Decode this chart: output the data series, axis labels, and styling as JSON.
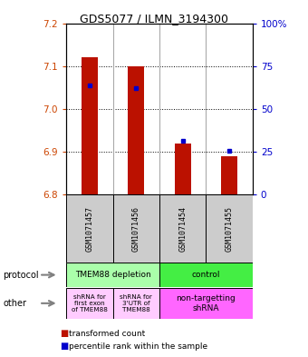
{
  "title": "GDS5077 / ILMN_3194300",
  "samples": [
    "GSM1071457",
    "GSM1071456",
    "GSM1071454",
    "GSM1071455"
  ],
  "bar_values": [
    7.12,
    7.1,
    6.92,
    6.89
  ],
  "bar_bottom": 6.8,
  "blue_values": [
    7.055,
    7.048,
    6.925,
    6.902
  ],
  "ylim_left": [
    6.8,
    7.2
  ],
  "ylim_right": [
    0,
    100
  ],
  "left_ticks": [
    6.8,
    6.9,
    7.0,
    7.1,
    7.2
  ],
  "right_ticks": [
    0,
    25,
    50,
    75,
    100
  ],
  "right_tick_labels": [
    "0",
    "25",
    "50",
    "75",
    "100%"
  ],
  "bar_color": "#bb1100",
  "blue_color": "#0000cc",
  "protocol_label0": "TMEM88 depletion",
  "protocol_label1": "control",
  "protocol_color0": "#aaffaa",
  "protocol_color1": "#44ee44",
  "other_label0": "shRNA for\nfirst exon\nof TMEM88",
  "other_label1": "shRNA for\n3'UTR of\nTMEM88",
  "other_label2": "non-targetting\nshRNA",
  "other_color01": "#ffccff",
  "other_color2": "#ff66ff",
  "sample_box_color": "#cccccc",
  "label_color_left": "#cc4400",
  "label_color_right": "#0000cc",
  "legend_red": "transformed count",
  "legend_blue": "percentile rank within the sample",
  "bar_width": 0.35,
  "grid_lines": [
    6.9,
    7.0,
    7.1
  ]
}
